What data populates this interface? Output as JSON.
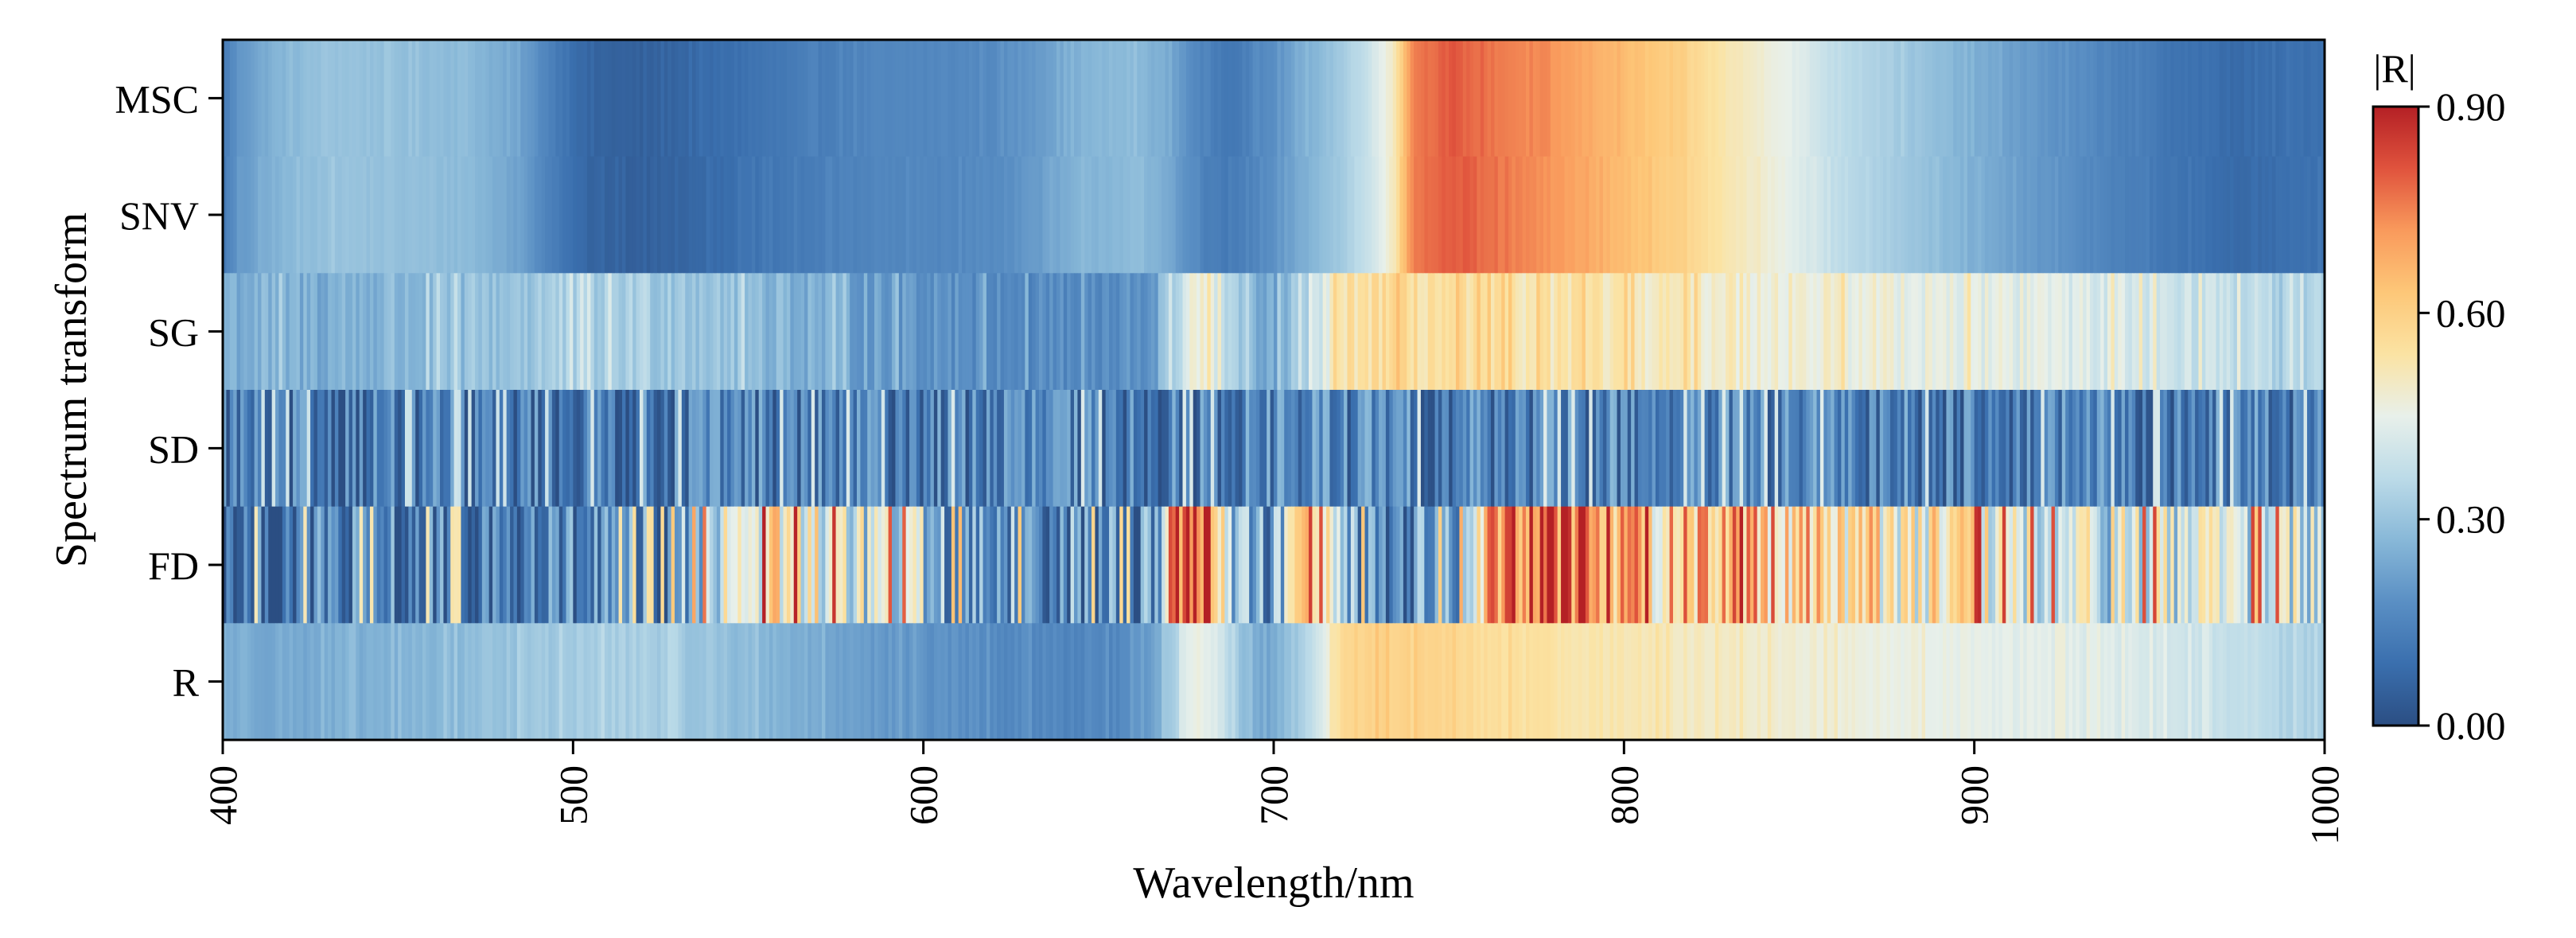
{
  "chart_data": {
    "type": "heatmap",
    "title": "",
    "xlabel": "Wavelength/nm",
    "ylabel": "Spectrum transform",
    "xlim": [
      400,
      1000
    ],
    "xticks": [
      "400",
      "500",
      "600",
      "700",
      "800",
      "900",
      "1000"
    ],
    "rows": [
      "MSC",
      "SNV",
      "SG",
      "SD",
      "FD",
      "R"
    ],
    "colorbar": {
      "label": "|R|",
      "min": 0.0,
      "max": 0.9,
      "ticks": [
        "0.00",
        "0.30",
        "0.60",
        "0.90"
      ]
    },
    "colormap": [
      "#2b4e83",
      "#3a6fae",
      "#5a8fc4",
      "#88b8d8",
      "#bcdbe8",
      "#e8f0ea",
      "#fbe3a3",
      "#fdc778",
      "#f99a5c",
      "#e0533d",
      "#b42025"
    ],
    "series": [
      {
        "name": "MSC",
        "profile": [
          [
            400,
            0.12
          ],
          [
            405,
            0.2
          ],
          [
            415,
            0.26
          ],
          [
            430,
            0.3
          ],
          [
            450,
            0.29
          ],
          [
            470,
            0.28
          ],
          [
            485,
            0.22
          ],
          [
            495,
            0.13
          ],
          [
            505,
            0.06
          ],
          [
            520,
            0.05
          ],
          [
            550,
            0.1
          ],
          [
            580,
            0.15
          ],
          [
            605,
            0.16
          ],
          [
            620,
            0.17
          ],
          [
            630,
            0.2
          ],
          [
            645,
            0.26
          ],
          [
            660,
            0.28
          ],
          [
            670,
            0.24
          ],
          [
            680,
            0.14
          ],
          [
            688,
            0.12
          ],
          [
            700,
            0.18
          ],
          [
            710,
            0.26
          ],
          [
            720,
            0.32
          ],
          [
            728,
            0.4
          ],
          [
            734,
            0.5
          ],
          [
            740,
            0.76
          ],
          [
            750,
            0.8
          ],
          [
            765,
            0.76
          ],
          [
            780,
            0.72
          ],
          [
            800,
            0.65
          ],
          [
            815,
            0.6
          ],
          [
            830,
            0.52
          ],
          [
            845,
            0.46
          ],
          [
            860,
            0.37
          ],
          [
            875,
            0.33
          ],
          [
            890,
            0.28
          ],
          [
            910,
            0.22
          ],
          [
            935,
            0.16
          ],
          [
            955,
            0.11
          ],
          [
            975,
            0.08
          ],
          [
            1000,
            0.1
          ]
        ],
        "noise": 0.01
      },
      {
        "name": "SNV",
        "profile": [
          [
            400,
            0.12
          ],
          [
            405,
            0.2
          ],
          [
            415,
            0.26
          ],
          [
            430,
            0.3
          ],
          [
            450,
            0.29
          ],
          [
            470,
            0.28
          ],
          [
            485,
            0.22
          ],
          [
            495,
            0.13
          ],
          [
            505,
            0.06
          ],
          [
            520,
            0.05
          ],
          [
            550,
            0.1
          ],
          [
            580,
            0.15
          ],
          [
            605,
            0.16
          ],
          [
            620,
            0.17
          ],
          [
            630,
            0.2
          ],
          [
            645,
            0.26
          ],
          [
            660,
            0.28
          ],
          [
            670,
            0.24
          ],
          [
            680,
            0.14
          ],
          [
            688,
            0.12
          ],
          [
            700,
            0.18
          ],
          [
            710,
            0.26
          ],
          [
            720,
            0.32
          ],
          [
            728,
            0.4
          ],
          [
            734,
            0.5
          ],
          [
            740,
            0.76
          ],
          [
            750,
            0.8
          ],
          [
            765,
            0.76
          ],
          [
            780,
            0.72
          ],
          [
            800,
            0.65
          ],
          [
            815,
            0.6
          ],
          [
            830,
            0.52
          ],
          [
            845,
            0.46
          ],
          [
            860,
            0.37
          ],
          [
            875,
            0.33
          ],
          [
            890,
            0.28
          ],
          [
            910,
            0.22
          ],
          [
            935,
            0.16
          ],
          [
            955,
            0.11
          ],
          [
            975,
            0.08
          ],
          [
            1000,
            0.1
          ]
        ],
        "noise": 0.01
      },
      {
        "name": "SG",
        "profile": [
          [
            400,
            0.26
          ],
          [
            420,
            0.25
          ],
          [
            440,
            0.26
          ],
          [
            460,
            0.28
          ],
          [
            480,
            0.3
          ],
          [
            500,
            0.33
          ],
          [
            520,
            0.33
          ],
          [
            540,
            0.31
          ],
          [
            560,
            0.27
          ],
          [
            580,
            0.23
          ],
          [
            600,
            0.2
          ],
          [
            620,
            0.18
          ],
          [
            640,
            0.17
          ],
          [
            655,
            0.16
          ],
          [
            665,
            0.2
          ],
          [
            672,
            0.35
          ],
          [
            678,
            0.5
          ],
          [
            684,
            0.42
          ],
          [
            690,
            0.3
          ],
          [
            697,
            0.22
          ],
          [
            703,
            0.26
          ],
          [
            710,
            0.35
          ],
          [
            715,
            0.45
          ],
          [
            720,
            0.54
          ],
          [
            730,
            0.56
          ],
          [
            760,
            0.54
          ],
          [
            800,
            0.52
          ],
          [
            850,
            0.48
          ],
          [
            900,
            0.45
          ],
          [
            950,
            0.42
          ],
          [
            975,
            0.38
          ],
          [
            990,
            0.33
          ],
          [
            1000,
            0.32
          ]
        ],
        "noise": 0.05
      },
      {
        "name": "SD",
        "profile": [
          [
            400,
            0.12
          ],
          [
            450,
            0.12
          ],
          [
            500,
            0.13
          ],
          [
            550,
            0.14
          ],
          [
            600,
            0.14
          ],
          [
            650,
            0.14
          ],
          [
            700,
            0.15
          ],
          [
            750,
            0.15
          ],
          [
            800,
            0.15
          ],
          [
            850,
            0.15
          ],
          [
            900,
            0.14
          ],
          [
            950,
            0.14
          ],
          [
            1000,
            0.14
          ]
        ],
        "noise": 0.15
      },
      {
        "name": "FD",
        "profile": [
          [
            400,
            0.1
          ],
          [
            450,
            0.12
          ],
          [
            500,
            0.12
          ],
          [
            525,
            0.16
          ],
          [
            535,
            0.3
          ],
          [
            545,
            0.5
          ],
          [
            560,
            0.52
          ],
          [
            580,
            0.42
          ],
          [
            598,
            0.38
          ],
          [
            605,
            0.26
          ],
          [
            620,
            0.22
          ],
          [
            640,
            0.2
          ],
          [
            660,
            0.16
          ],
          [
            668,
            0.3
          ],
          [
            672,
            0.85
          ],
          [
            682,
            0.86
          ],
          [
            688,
            0.3
          ],
          [
            695,
            0.2
          ],
          [
            702,
            0.24
          ],
          [
            706,
            0.7
          ],
          [
            714,
            0.7
          ],
          [
            718,
            0.3
          ],
          [
            730,
            0.2
          ],
          [
            745,
            0.18
          ],
          [
            755,
            0.3
          ],
          [
            763,
            0.75
          ],
          [
            775,
            0.85
          ],
          [
            790,
            0.78
          ],
          [
            810,
            0.6
          ],
          [
            830,
            0.7
          ],
          [
            850,
            0.62
          ],
          [
            870,
            0.55
          ],
          [
            890,
            0.5
          ],
          [
            910,
            0.45
          ],
          [
            930,
            0.4
          ],
          [
            950,
            0.42
          ],
          [
            970,
            0.46
          ],
          [
            990,
            0.4
          ],
          [
            1000,
            0.35
          ]
        ],
        "noise": 0.22
      },
      {
        "name": "R",
        "profile": [
          [
            400,
            0.25
          ],
          [
            420,
            0.24
          ],
          [
            440,
            0.25
          ],
          [
            460,
            0.27
          ],
          [
            480,
            0.3
          ],
          [
            500,
            0.32
          ],
          [
            520,
            0.33
          ],
          [
            540,
            0.3
          ],
          [
            560,
            0.26
          ],
          [
            580,
            0.22
          ],
          [
            600,
            0.19
          ],
          [
            620,
            0.17
          ],
          [
            640,
            0.16
          ],
          [
            655,
            0.16
          ],
          [
            665,
            0.2
          ],
          [
            672,
            0.35
          ],
          [
            678,
            0.48
          ],
          [
            684,
            0.42
          ],
          [
            690,
            0.3
          ],
          [
            697,
            0.22
          ],
          [
            703,
            0.27
          ],
          [
            710,
            0.36
          ],
          [
            715,
            0.46
          ],
          [
            720,
            0.58
          ],
          [
            730,
            0.6
          ],
          [
            760,
            0.56
          ],
          [
            800,
            0.52
          ],
          [
            850,
            0.48
          ],
          [
            900,
            0.45
          ],
          [
            950,
            0.42
          ],
          [
            975,
            0.38
          ],
          [
            990,
            0.34
          ],
          [
            1000,
            0.32
          ]
        ],
        "noise": 0.02
      }
    ]
  }
}
